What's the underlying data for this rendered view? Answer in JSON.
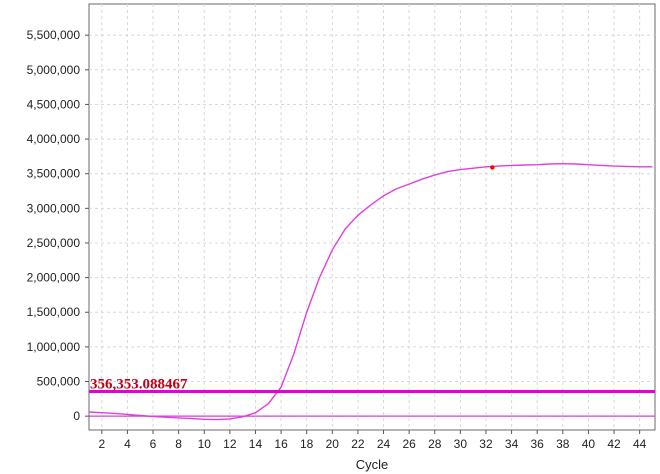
{
  "chart_data": {
    "type": "line",
    "title": "",
    "xlabel": "Cycle",
    "ylabel": "",
    "xlim": [
      1,
      45.2
    ],
    "ylim": [
      -200000,
      5950000
    ],
    "x_ticks": [
      2,
      4,
      6,
      8,
      10,
      12,
      14,
      16,
      18,
      20,
      22,
      24,
      26,
      28,
      30,
      32,
      34,
      36,
      38,
      40,
      42,
      44
    ],
    "y_ticks": [
      0,
      500000,
      1000000,
      1500000,
      2000000,
      2500000,
      3000000,
      3500000,
      4000000,
      4500000,
      5000000,
      5500000
    ],
    "y_tick_labels": [
      "0",
      "500,000",
      "1,000,000",
      "1,500,000",
      "2,000,000",
      "2,500,000",
      "3,000,000",
      "3,500,000",
      "4,000,000",
      "4,500,000",
      "5,000,000",
      "5,500,000"
    ],
    "grid": true,
    "series": [
      {
        "color": "#e040e0",
        "x": [
          1,
          2,
          3,
          4,
          5,
          6,
          7,
          8,
          9,
          10,
          11,
          12,
          13,
          14,
          15,
          16,
          17,
          18,
          19,
          20,
          21,
          22,
          23,
          24,
          25,
          26,
          27,
          28,
          29,
          30,
          31,
          32,
          33,
          34,
          35,
          36,
          37,
          38,
          39,
          40,
          41,
          42,
          43,
          44,
          45
        ],
        "y": [
          60000,
          50000,
          40000,
          25000,
          10000,
          -5000,
          -15000,
          -25000,
          -35000,
          -45000,
          -50000,
          -40000,
          -10000,
          50000,
          180000,
          420000,
          900000,
          1500000,
          2000000,
          2400000,
          2700000,
          2900000,
          3050000,
          3180000,
          3280000,
          3350000,
          3420000,
          3480000,
          3530000,
          3560000,
          3580000,
          3600000,
          3610000,
          3620000,
          3625000,
          3630000,
          3640000,
          3645000,
          3640000,
          3630000,
          3620000,
          3610000,
          3605000,
          3600000,
          3600000
        ]
      },
      {
        "color": "#d045d0",
        "x": [
          1,
          45.2
        ],
        "y": [
          0,
          0
        ]
      }
    ],
    "threshold": {
      "value": 356353.088467,
      "label": "356,353.088467",
      "color": "#e000e0"
    },
    "marker": {
      "x": 32.5,
      "y": 3590000,
      "color": "#ff0000"
    }
  }
}
